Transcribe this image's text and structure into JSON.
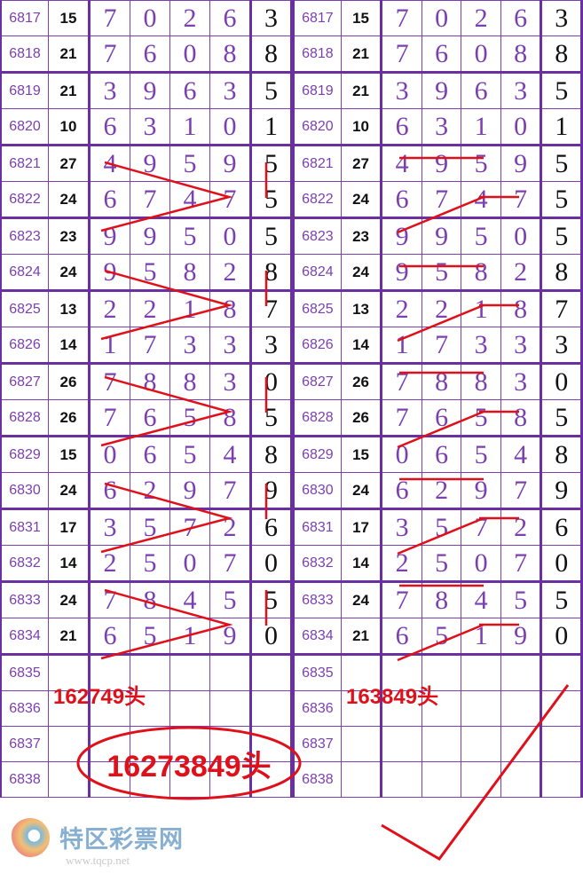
{
  "rows": [
    {
      "period": "6817",
      "sum": "15",
      "digits": [
        "7",
        "0",
        "2",
        "6"
      ],
      "last": "3"
    },
    {
      "period": "6818",
      "sum": "21",
      "digits": [
        "7",
        "6",
        "0",
        "8"
      ],
      "last": "8"
    },
    {
      "period": "6819",
      "sum": "21",
      "digits": [
        "3",
        "9",
        "6",
        "3"
      ],
      "last": "5"
    },
    {
      "period": "6820",
      "sum": "10",
      "digits": [
        "6",
        "3",
        "1",
        "0"
      ],
      "last": "1"
    },
    {
      "period": "6821",
      "sum": "27",
      "digits": [
        "4",
        "9",
        "5",
        "9"
      ],
      "last": "5"
    },
    {
      "period": "6822",
      "sum": "24",
      "digits": [
        "6",
        "7",
        "4",
        "7"
      ],
      "last": "5"
    },
    {
      "period": "6823",
      "sum": "23",
      "digits": [
        "9",
        "9",
        "5",
        "0"
      ],
      "last": "5"
    },
    {
      "period": "6824",
      "sum": "24",
      "digits": [
        "9",
        "5",
        "8",
        "2"
      ],
      "last": "8"
    },
    {
      "period": "6825",
      "sum": "13",
      "digits": [
        "2",
        "2",
        "1",
        "8"
      ],
      "last": "7"
    },
    {
      "period": "6826",
      "sum": "14",
      "digits": [
        "1",
        "7",
        "3",
        "3"
      ],
      "last": "3"
    },
    {
      "period": "6827",
      "sum": "26",
      "digits": [
        "7",
        "8",
        "8",
        "3"
      ],
      "last": "0"
    },
    {
      "period": "6828",
      "sum": "26",
      "digits": [
        "7",
        "6",
        "5",
        "8"
      ],
      "last": "5"
    },
    {
      "period": "6829",
      "sum": "15",
      "digits": [
        "0",
        "6",
        "5",
        "4"
      ],
      "last": "8"
    },
    {
      "period": "6830",
      "sum": "24",
      "digits": [
        "6",
        "2",
        "9",
        "7"
      ],
      "last": "9"
    },
    {
      "period": "6831",
      "sum": "17",
      "digits": [
        "3",
        "5",
        "7",
        "2"
      ],
      "last": "6"
    },
    {
      "period": "6832",
      "sum": "14",
      "digits": [
        "2",
        "5",
        "0",
        "7"
      ],
      "last": "0"
    },
    {
      "period": "6833",
      "sum": "24",
      "digits": [
        "7",
        "8",
        "4",
        "5"
      ],
      "last": "5"
    },
    {
      "period": "6834",
      "sum": "21",
      "digits": [
        "6",
        "5",
        "1",
        "9"
      ],
      "last": "0"
    },
    {
      "period": "6835",
      "sum": "",
      "digits": [
        "",
        "",
        "",
        ""
      ],
      "last": ""
    },
    {
      "period": "6836",
      "sum": "",
      "digits": [
        "",
        "",
        "",
        ""
      ],
      "last": ""
    },
    {
      "period": "6837",
      "sum": "",
      "digits": [
        "",
        "",
        "",
        ""
      ],
      "last": ""
    },
    {
      "period": "6838",
      "sum": "",
      "digits": [
        "",
        "",
        "",
        ""
      ],
      "last": ""
    }
  ],
  "annotations": {
    "left": "162749头",
    "right": "163849头",
    "combined": "16273849头"
  },
  "watermark": {
    "name": "特区彩票网",
    "url": "www.tqcp.net"
  },
  "colors": {
    "grid": "#7b3fb0",
    "annotation": "#e0101a"
  }
}
